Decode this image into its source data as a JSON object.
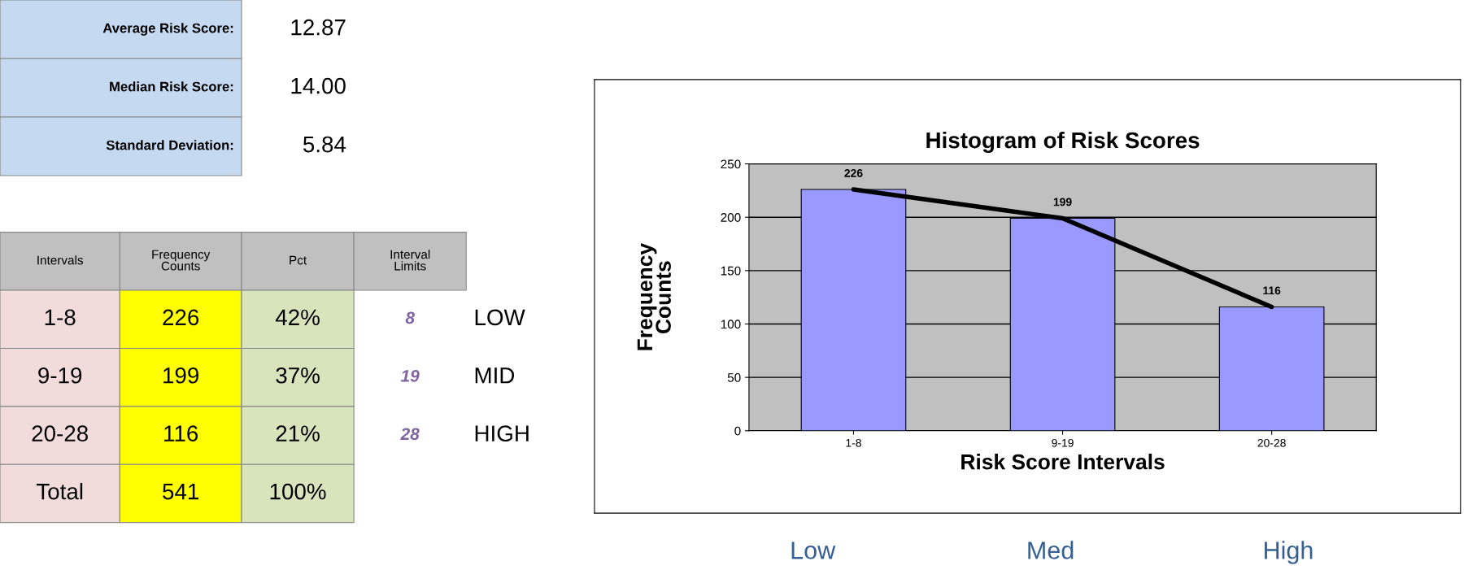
{
  "chart_data": [
    {
      "type": "other",
      "annotations": [
        "Average Risk Score:",
        "12.87",
        "Median Risk Score:",
        "14.00",
        "Standard Deviation:",
        "5.84",
        "Intervals",
        "Frequency\nCounts",
        "Pct",
        "Interval\nLimits",
        "1-8",
        "226",
        "42%",
        "8",
        "LOW",
        "9-19",
        "199",
        "37%",
        "19",
        "MID",
        "20-28",
        "116",
        "21%",
        "28",
        "HIGH",
        "Total",
        "541",
        "100%"
      ]
    },
    {
      "type": "bar",
      "title": "Histogram of Risk Scores",
      "xlabel": "Risk Score Intervals",
      "ylabel": "Frequency\nCounts",
      "categories": [
        "1-8",
        "9-19",
        "20-28"
      ],
      "series": [
        {
          "type": "bar",
          "color": "#9999ff",
          "values": [
            226,
            199,
            116
          ],
          "value_labels": [
            "226",
            "199",
            "116"
          ]
        },
        {
          "type": "line",
          "color": "#000000",
          "values": [
            226,
            199,
            116
          ],
          "marker": "none"
        }
      ],
      "ylim": [
        0,
        250
      ],
      "yticks": [
        0,
        50,
        100,
        150,
        200,
        250
      ],
      "grid": "y",
      "legend": false,
      "annotations": [
        "Low",
        "Med",
        "High"
      ]
    }
  ]
}
